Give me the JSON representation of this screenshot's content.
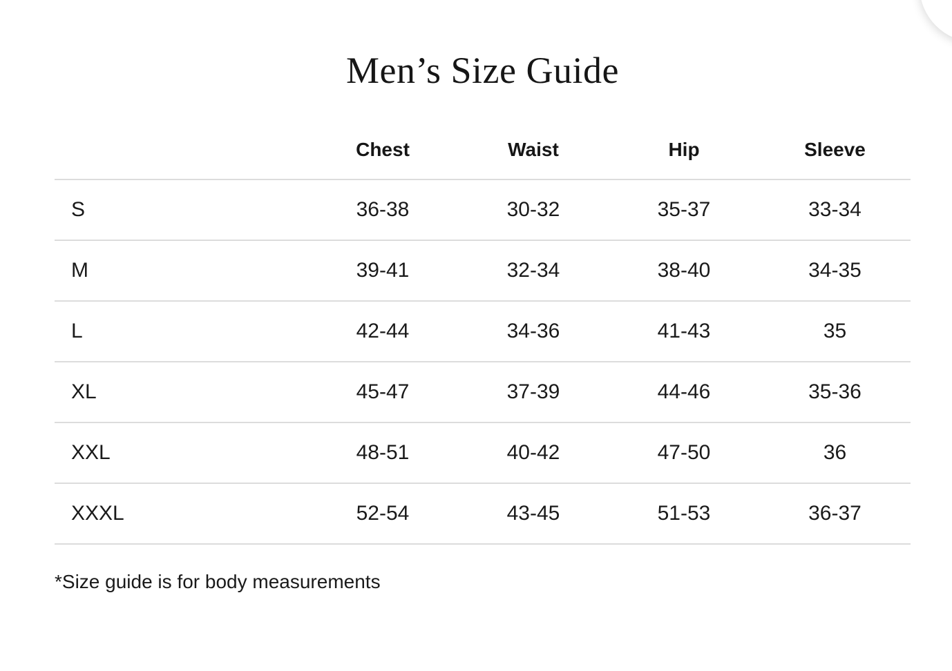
{
  "page": {
    "title": "Men’s Size Guide",
    "footnote": "*Size guide is for body measurements"
  },
  "table": {
    "columns": [
      "Chest",
      "Waist",
      "Hip",
      "Sleeve"
    ],
    "rows": [
      {
        "size": "S",
        "chest": "36-38",
        "waist": "30-32",
        "hip": "35-37",
        "sleeve": "33-34"
      },
      {
        "size": "M",
        "chest": "39-41",
        "waist": "32-34",
        "hip": "38-40",
        "sleeve": "34-35"
      },
      {
        "size": "L",
        "chest": "42-44",
        "waist": "34-36",
        "hip": "41-43",
        "sleeve": "35"
      },
      {
        "size": "XL",
        "chest": "45-47",
        "waist": "37-39",
        "hip": "44-46",
        "sleeve": "35-36"
      },
      {
        "size": "XXL",
        "chest": "48-51",
        "waist": "40-42",
        "hip": "47-50",
        "sleeve": "36"
      },
      {
        "size": "XXXL",
        "chest": "52-54",
        "waist": "43-45",
        "hip": "51-53",
        "sleeve": "36-37"
      }
    ]
  },
  "colors": {
    "background": "#ffffff",
    "text": "#1a1a1a",
    "divider": "#dcdcdc"
  }
}
